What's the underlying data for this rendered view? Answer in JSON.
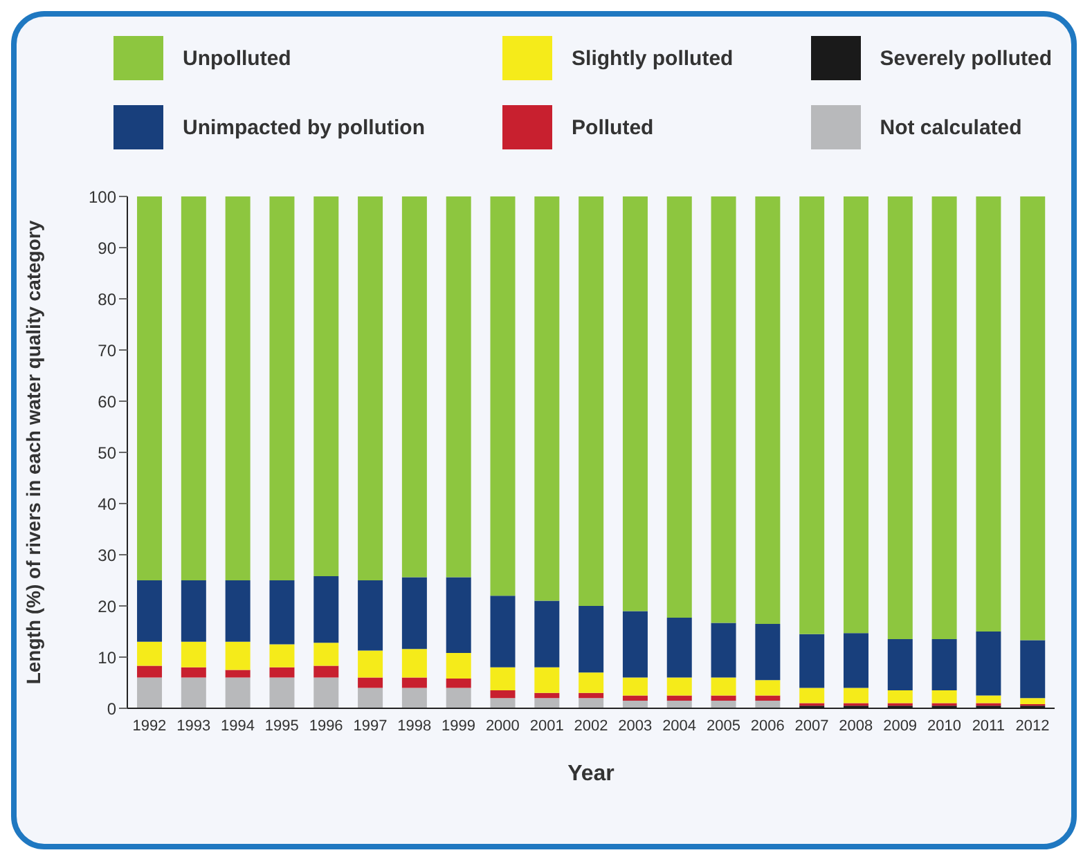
{
  "chart_data": {
    "type": "bar",
    "stacked": true,
    "xlabel": "Year",
    "ylabel": "Length (%) of rivers in each water quality category",
    "categories": [
      "1992",
      "1993",
      "1994",
      "1995",
      "1996",
      "1997",
      "1998",
      "1999",
      "2000",
      "2001",
      "2002",
      "2003",
      "2004",
      "2005",
      "2006",
      "2007",
      "2008",
      "2009",
      "2010",
      "2011",
      "2012"
    ],
    "series": [
      {
        "name": "Not calculated",
        "color": "#b8b9bb",
        "values": [
          6,
          6,
          6,
          6,
          6,
          4,
          4,
          4,
          2,
          2,
          2,
          1.5,
          1.5,
          1.5,
          1.5,
          0,
          0,
          0,
          0,
          0,
          0
        ]
      },
      {
        "name": "Severely polluted",
        "color": "#1a1a1a",
        "values": [
          0,
          0,
          0,
          0,
          0,
          0,
          0,
          0,
          0,
          0,
          0,
          0,
          0,
          0,
          0,
          0.5,
          0.5,
          0.5,
          0.5,
          0.5,
          0.5
        ]
      },
      {
        "name": "Polluted",
        "color": "#c8202f",
        "values": [
          2.3,
          2,
          1.5,
          2,
          2.3,
          2,
          2,
          1.8,
          1.5,
          1,
          1,
          1,
          1,
          1,
          1,
          0.5,
          0.5,
          0.5,
          0.5,
          0.5,
          0.3
        ]
      },
      {
        "name": "Slightly polluted",
        "color": "#f5eb1a",
        "values": [
          4.7,
          5,
          5.5,
          4.5,
          4.5,
          5.3,
          5.6,
          5,
          4.5,
          5,
          4,
          3.5,
          3.5,
          3.5,
          3,
          3,
          3,
          2.5,
          2.5,
          1.5,
          1.2
        ]
      },
      {
        "name": "Unimpacted by pollution",
        "color": "#183f7c",
        "values": [
          12,
          12,
          12,
          12.5,
          13,
          13.7,
          14,
          14.8,
          14,
          13,
          13,
          13,
          11.7,
          10.7,
          11,
          10.5,
          10.7,
          10,
          10,
          12.5,
          11.3
        ]
      },
      {
        "name": "Unpolluted",
        "color": "#8dc63f",
        "values": [
          75,
          75,
          75,
          75,
          74.2,
          75,
          74.4,
          74.4,
          78,
          79,
          80,
          81,
          82.3,
          83.3,
          83.5,
          85.5,
          85.3,
          86.5,
          86.5,
          85,
          86.7
        ]
      }
    ],
    "ylim": [
      0,
      100
    ],
    "yticks": [
      0,
      10,
      20,
      30,
      40,
      50,
      60,
      70,
      80,
      90,
      100
    ],
    "grid": false,
    "legend": "top"
  }
}
